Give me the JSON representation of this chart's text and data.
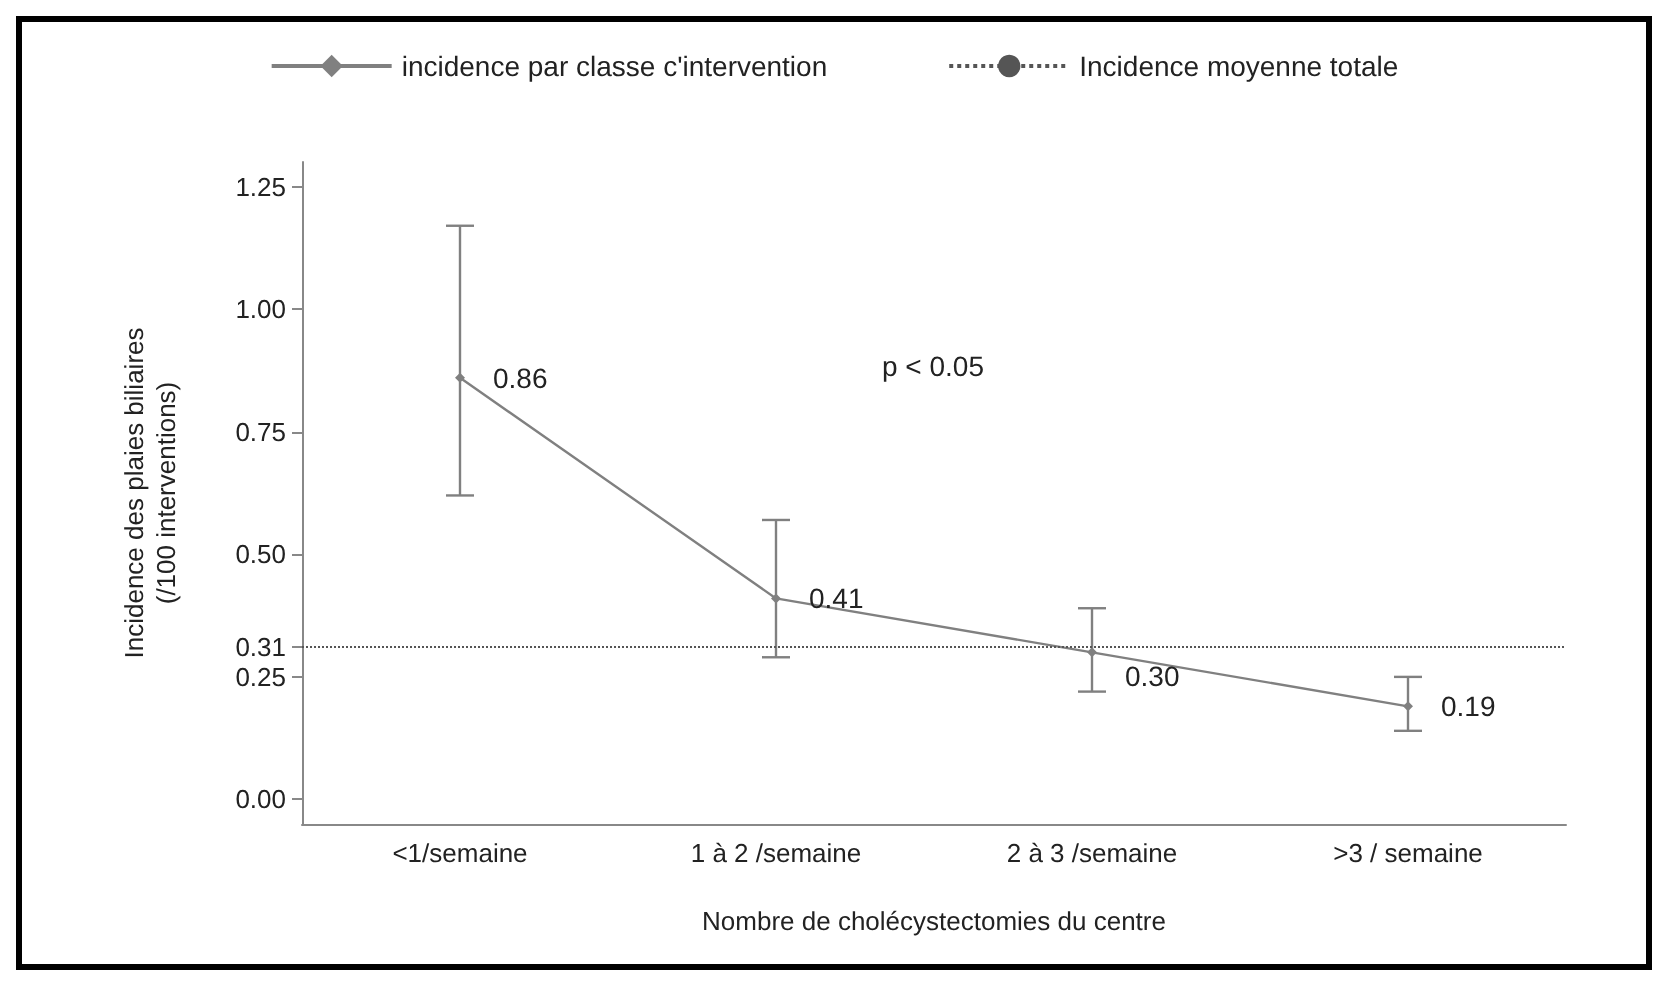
{
  "chart_data": {
    "type": "line",
    "xlabel": "Nombre de cholécystectomies du centre",
    "ylabel": "Incidence des plaies biliaires\n(/100 interventions)",
    "categories": [
      "<1/semaine",
      "1 à 2 /semaine",
      "2 à 3 /semaine",
      ">3 / semaine"
    ],
    "series": [
      {
        "name": "incidence par classe c'intervention",
        "color": "#808080",
        "values": [
          0.86,
          0.41,
          0.3,
          0.19
        ],
        "value_labels": [
          "0.86",
          "0.41",
          "0.30",
          "0.19"
        ],
        "errors": [
          [
            0.62,
            1.17
          ],
          [
            0.29,
            0.57
          ],
          [
            0.22,
            0.39
          ],
          [
            0.14,
            0.25
          ]
        ]
      }
    ],
    "ref_lines": [
      {
        "axis": "y",
        "value": 0.31,
        "label": "Incidence moyenne totale",
        "color": "#555555",
        "line_style": "dotted"
      }
    ],
    "annotations": [
      "p < 0.05"
    ],
    "ylim": [
      -0.05,
      1.3
    ],
    "yticks": [
      {
        "value": 0,
        "label": "0.00"
      },
      0.25,
      0.31,
      {
        "value": 0.5,
        "label": "0.50"
      },
      0.75,
      {
        "value": 1,
        "label": "1.00"
      },
      1.25
    ],
    "marker": "diamond",
    "line_style": "solid",
    "grid": false,
    "legend": "top"
  }
}
